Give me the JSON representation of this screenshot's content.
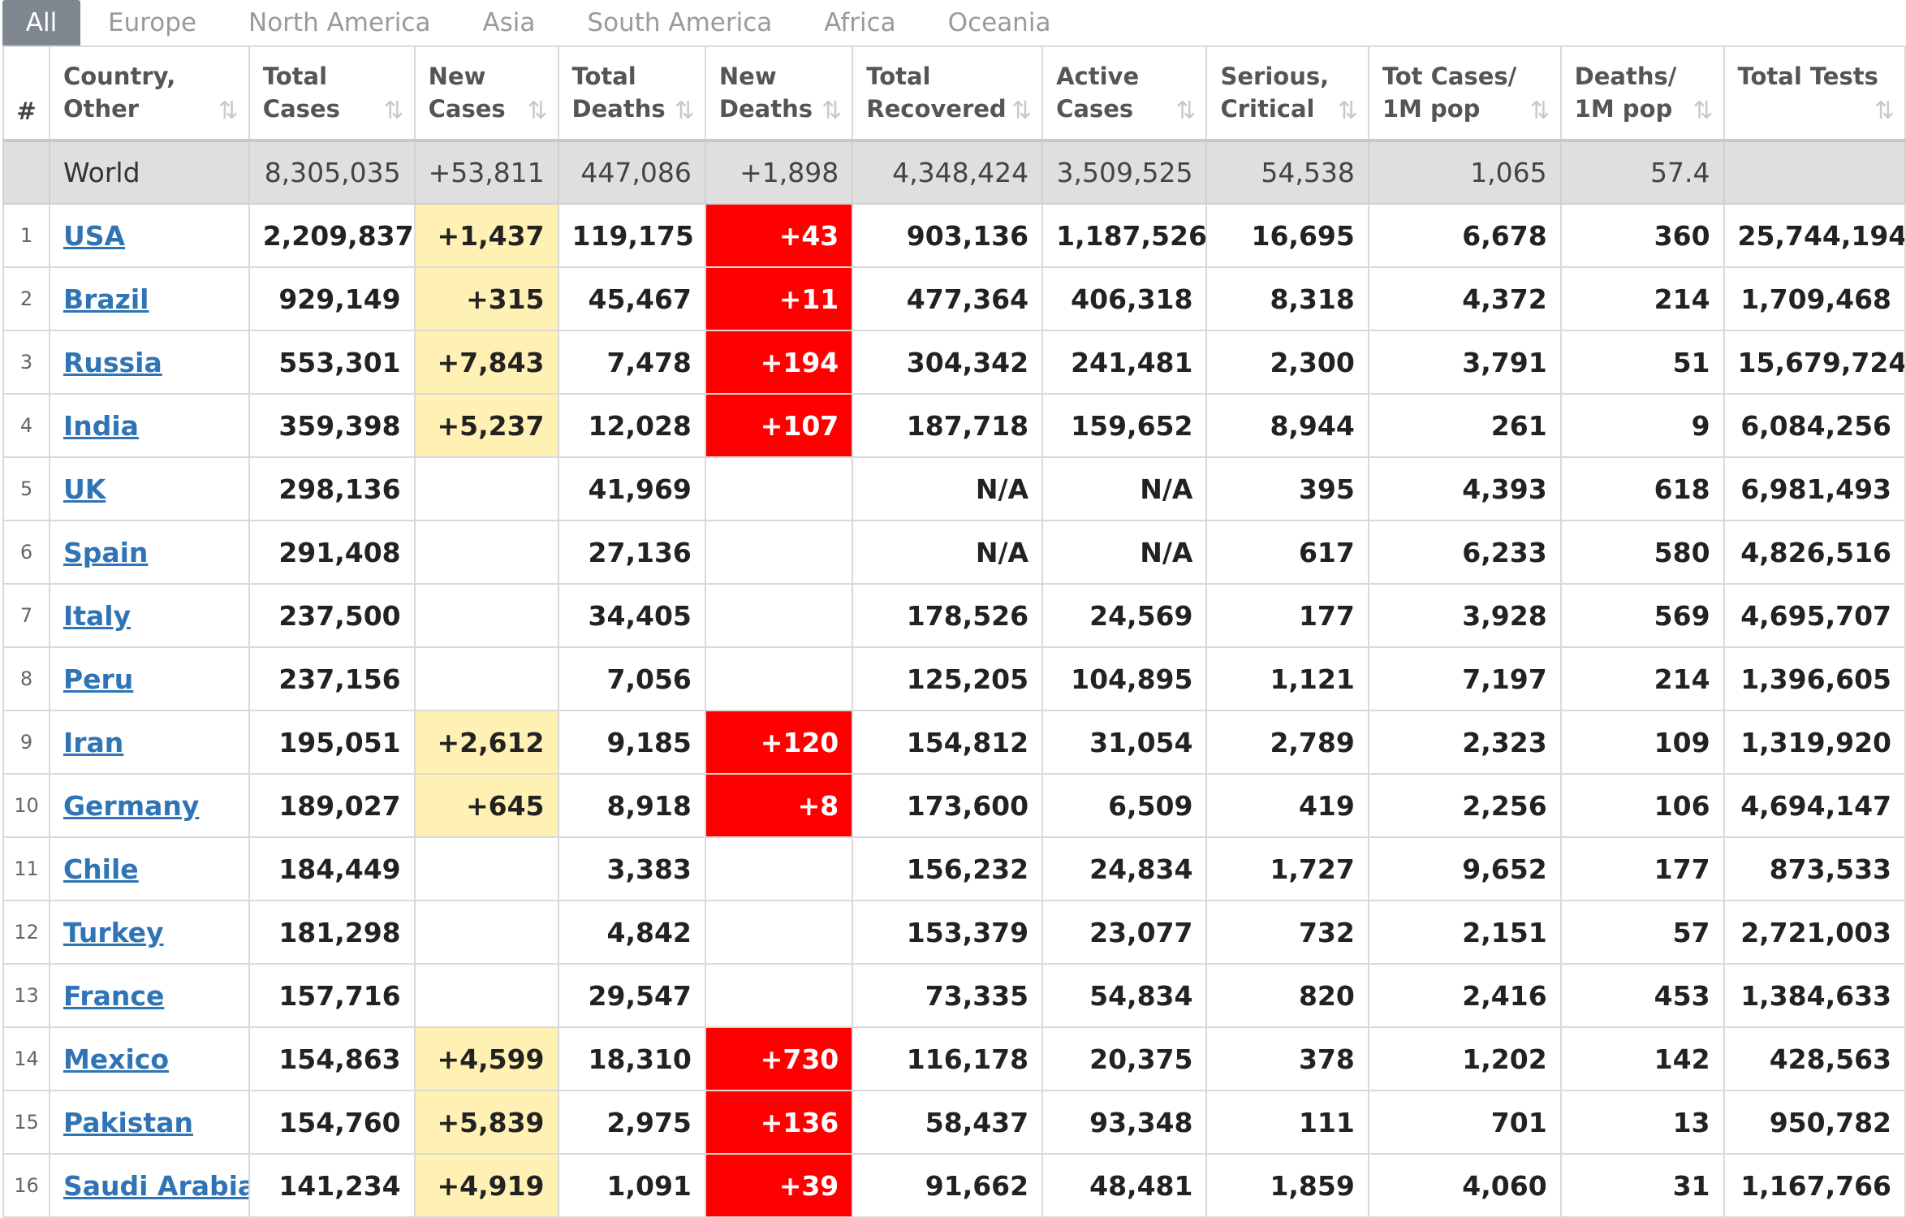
{
  "tabs": [
    "All",
    "Europe",
    "North America",
    "Asia",
    "South America",
    "Africa",
    "Oceania"
  ],
  "active_tab": "All",
  "colors": {
    "new_cases_highlight": "#fff0b3",
    "new_deaths_highlight": "#ff0000",
    "link": "#2f74b5",
    "world_row": "#dfdfdf",
    "active_tab": "#7e8790"
  },
  "columns": [
    {
      "label": "#",
      "sort_icon": ""
    },
    {
      "label": "Country, Other",
      "sort_icon": "⇅"
    },
    {
      "label": "Total Cases",
      "sort_icon": "⇅"
    },
    {
      "label": "New Cases",
      "sort_icon": "⇅"
    },
    {
      "label": "Total Deaths",
      "sort_icon": "⇅"
    },
    {
      "label": "New Deaths",
      "sort_icon": "⇅"
    },
    {
      "label": "Total Recovered",
      "sort_icon": "⇅"
    },
    {
      "label": "Active Cases",
      "sort_icon": "⇅"
    },
    {
      "label": "Serious, Critical",
      "sort_icon": "⇅"
    },
    {
      "label": "Tot Cases/ 1M pop",
      "sort_icon": "⇅"
    },
    {
      "label": "Deaths/ 1M pop",
      "sort_icon": "⇅"
    },
    {
      "label": "Total Tests",
      "sort_icon": "⇅"
    }
  ],
  "world": {
    "rank": "",
    "country": "World",
    "total_cases": "8,305,035",
    "new_cases": "+53,811",
    "total_deaths": "447,086",
    "new_deaths": "+1,898",
    "total_recovered": "4,348,424",
    "active_cases": "3,509,525",
    "serious": "54,538",
    "cases_per_1m": "1,065",
    "deaths_per_1m": "57.4",
    "total_tests": ""
  },
  "rows": [
    {
      "rank": "1",
      "country": "USA",
      "total_cases": "2,209,837",
      "new_cases": "+1,437",
      "total_deaths": "119,175",
      "new_deaths": "+43",
      "total_recovered": "903,136",
      "active_cases": "1,187,526",
      "serious": "16,695",
      "cases_per_1m": "6,678",
      "deaths_per_1m": "360",
      "total_tests": "25,744,194"
    },
    {
      "rank": "2",
      "country": "Brazil",
      "total_cases": "929,149",
      "new_cases": "+315",
      "total_deaths": "45,467",
      "new_deaths": "+11",
      "total_recovered": "477,364",
      "active_cases": "406,318",
      "serious": "8,318",
      "cases_per_1m": "4,372",
      "deaths_per_1m": "214",
      "total_tests": "1,709,468"
    },
    {
      "rank": "3",
      "country": "Russia",
      "total_cases": "553,301",
      "new_cases": "+7,843",
      "total_deaths": "7,478",
      "new_deaths": "+194",
      "total_recovered": "304,342",
      "active_cases": "241,481",
      "serious": "2,300",
      "cases_per_1m": "3,791",
      "deaths_per_1m": "51",
      "total_tests": "15,679,724"
    },
    {
      "rank": "4",
      "country": "India",
      "total_cases": "359,398",
      "new_cases": "+5,237",
      "total_deaths": "12,028",
      "new_deaths": "+107",
      "total_recovered": "187,718",
      "active_cases": "159,652",
      "serious": "8,944",
      "cases_per_1m": "261",
      "deaths_per_1m": "9",
      "total_tests": "6,084,256"
    },
    {
      "rank": "5",
      "country": "UK",
      "total_cases": "298,136",
      "new_cases": "",
      "total_deaths": "41,969",
      "new_deaths": "",
      "total_recovered": "N/A",
      "active_cases": "N/A",
      "serious": "395",
      "cases_per_1m": "4,393",
      "deaths_per_1m": "618",
      "total_tests": "6,981,493"
    },
    {
      "rank": "6",
      "country": "Spain",
      "total_cases": "291,408",
      "new_cases": "",
      "total_deaths": "27,136",
      "new_deaths": "",
      "total_recovered": "N/A",
      "active_cases": "N/A",
      "serious": "617",
      "cases_per_1m": "6,233",
      "deaths_per_1m": "580",
      "total_tests": "4,826,516"
    },
    {
      "rank": "7",
      "country": "Italy",
      "total_cases": "237,500",
      "new_cases": "",
      "total_deaths": "34,405",
      "new_deaths": "",
      "total_recovered": "178,526",
      "active_cases": "24,569",
      "serious": "177",
      "cases_per_1m": "3,928",
      "deaths_per_1m": "569",
      "total_tests": "4,695,707"
    },
    {
      "rank": "8",
      "country": "Peru",
      "total_cases": "237,156",
      "new_cases": "",
      "total_deaths": "7,056",
      "new_deaths": "",
      "total_recovered": "125,205",
      "active_cases": "104,895",
      "serious": "1,121",
      "cases_per_1m": "7,197",
      "deaths_per_1m": "214",
      "total_tests": "1,396,605"
    },
    {
      "rank": "9",
      "country": "Iran",
      "total_cases": "195,051",
      "new_cases": "+2,612",
      "total_deaths": "9,185",
      "new_deaths": "+120",
      "total_recovered": "154,812",
      "active_cases": "31,054",
      "serious": "2,789",
      "cases_per_1m": "2,323",
      "deaths_per_1m": "109",
      "total_tests": "1,319,920"
    },
    {
      "rank": "10",
      "country": "Germany",
      "total_cases": "189,027",
      "new_cases": "+645",
      "total_deaths": "8,918",
      "new_deaths": "+8",
      "total_recovered": "173,600",
      "active_cases": "6,509",
      "serious": "419",
      "cases_per_1m": "2,256",
      "deaths_per_1m": "106",
      "total_tests": "4,694,147"
    },
    {
      "rank": "11",
      "country": "Chile",
      "total_cases": "184,449",
      "new_cases": "",
      "total_deaths": "3,383",
      "new_deaths": "",
      "total_recovered": "156,232",
      "active_cases": "24,834",
      "serious": "1,727",
      "cases_per_1m": "9,652",
      "deaths_per_1m": "177",
      "total_tests": "873,533"
    },
    {
      "rank": "12",
      "country": "Turkey",
      "total_cases": "181,298",
      "new_cases": "",
      "total_deaths": "4,842",
      "new_deaths": "",
      "total_recovered": "153,379",
      "active_cases": "23,077",
      "serious": "732",
      "cases_per_1m": "2,151",
      "deaths_per_1m": "57",
      "total_tests": "2,721,003"
    },
    {
      "rank": "13",
      "country": "France",
      "total_cases": "157,716",
      "new_cases": "",
      "total_deaths": "29,547",
      "new_deaths": "",
      "total_recovered": "73,335",
      "active_cases": "54,834",
      "serious": "820",
      "cases_per_1m": "2,416",
      "deaths_per_1m": "453",
      "total_tests": "1,384,633"
    },
    {
      "rank": "14",
      "country": "Mexico",
      "total_cases": "154,863",
      "new_cases": "+4,599",
      "total_deaths": "18,310",
      "new_deaths": "+730",
      "total_recovered": "116,178",
      "active_cases": "20,375",
      "serious": "378",
      "cases_per_1m": "1,202",
      "deaths_per_1m": "142",
      "total_tests": "428,563"
    },
    {
      "rank": "15",
      "country": "Pakistan",
      "total_cases": "154,760",
      "new_cases": "+5,839",
      "total_deaths": "2,975",
      "new_deaths": "+136",
      "total_recovered": "58,437",
      "active_cases": "93,348",
      "serious": "111",
      "cases_per_1m": "701",
      "deaths_per_1m": "13",
      "total_tests": "950,782"
    },
    {
      "rank": "16",
      "country": "Saudi Arabia",
      "total_cases": "141,234",
      "new_cases": "+4,919",
      "total_deaths": "1,091",
      "new_deaths": "+39",
      "total_recovered": "91,662",
      "active_cases": "48,481",
      "serious": "1,859",
      "cases_per_1m": "4,060",
      "deaths_per_1m": "31",
      "total_tests": "1,167,766"
    }
  ]
}
